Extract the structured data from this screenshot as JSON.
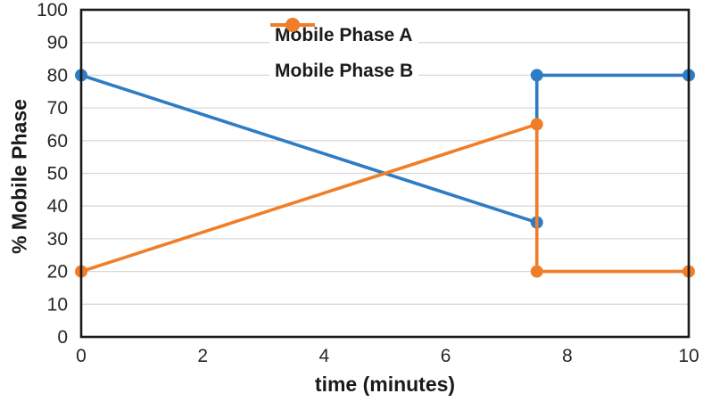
{
  "chart_data": {
    "type": "line",
    "title": "",
    "xlabel": "time (minutes)",
    "ylabel": "% Mobile Phase",
    "xlim": [
      0,
      10
    ],
    "ylim": [
      0,
      100
    ],
    "x_ticks": [
      0,
      2,
      4,
      6,
      8,
      10
    ],
    "y_ticks": [
      0,
      10,
      20,
      30,
      40,
      50,
      60,
      70,
      80,
      90,
      100
    ],
    "grid": "horizontal-only",
    "legend_position": "inside-top-center",
    "marker": "circle",
    "series": [
      {
        "name": "Mobile Phase A",
        "color": "#2E7CC4",
        "points": [
          [
            0,
            80
          ],
          [
            7.5,
            35
          ],
          [
            7.5,
            80
          ],
          [
            10,
            80
          ]
        ]
      },
      {
        "name": "Mobile Phase B",
        "color": "#F07E28",
        "points": [
          [
            0,
            20
          ],
          [
            7.5,
            65
          ],
          [
            7.5,
            20
          ],
          [
            10,
            20
          ]
        ]
      }
    ],
    "colors": {
      "grid": "#D9D9D9",
      "axis": "#1A1A1A",
      "text": "#262626",
      "background": "#FFFFFF"
    }
  }
}
